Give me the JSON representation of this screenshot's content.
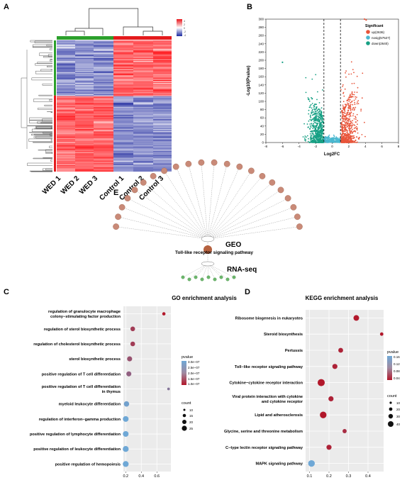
{
  "panels": {
    "A": "A",
    "B": "B",
    "C": "C",
    "D": "D",
    "E": "E"
  },
  "heatmap": {
    "samples": [
      "WED 1",
      "WED 2",
      "WED 3",
      "Control 1",
      "Control 2",
      "Control 3"
    ],
    "groups": [
      {
        "name": "WED",
        "color": "#2ca02c"
      },
      {
        "name": "Control",
        "color": "#e41a1c"
      }
    ],
    "legend_ticks": [
      "4",
      "2",
      "0",
      "-2",
      "-4"
    ]
  },
  "chart_data": [
    {
      "type": "scatter",
      "panel": "B",
      "xlabel": "Log2FC",
      "ylabel": "-Log10(Pvalue)",
      "xlim": [
        -8,
        8
      ],
      "ylim": [
        0,
        300
      ],
      "xticks": [
        "-8",
        "-6",
        "-4",
        "-2",
        "0",
        "2",
        "4",
        "6",
        "8"
      ],
      "yticks": [
        "0",
        "20",
        "40",
        "60",
        "80",
        "100",
        "120",
        "140",
        "160",
        "180",
        "200",
        "220",
        "240",
        "260",
        "280",
        "300"
      ],
      "threshold_x": [
        -1,
        1
      ],
      "legend_title": "Significant",
      "series": [
        {
          "name": "up(2636)",
          "color": "#e8553a"
        },
        {
          "name": "nosig(57527)",
          "color": "#4ab8d0"
        },
        {
          "name": "down(2640)",
          "color": "#17a084"
        }
      ]
    },
    {
      "type": "scatter",
      "panel": "C",
      "title": "GO enrichment analysis",
      "xticks": [
        "0.2",
        "0.4",
        "0.6"
      ],
      "xlim": [
        0.17,
        0.78
      ],
      "categories": [
        "regulation of granulocyte macrophage colony−stimulating factor production",
        "regulation of sterol biosynthetic process",
        "regulation of cholesterol biosynthetic process",
        "sterol biosynthetic process",
        "positive regulation of T cell differentiation",
        "positive regulation of T cell differentiation in thymus",
        "myeloid leukocyte differentiation",
        "regulation of interferon−gamma production",
        "positive regulation of lymphocyte differentiation",
        "positive regulation of leukocyte differentiation",
        "positive regulation of hemopoiesis"
      ],
      "x": [
        0.69,
        0.29,
        0.29,
        0.25,
        0.24,
        0.75,
        0.21,
        0.2,
        0.2,
        0.2,
        0.2
      ],
      "count": [
        6,
        12,
        12,
        14,
        14,
        4,
        16,
        18,
        18,
        19,
        19
      ],
      "pvalue": [
        1e-07,
        1.5e-07,
        1.5e-07,
        1.8e-07,
        2e-07,
        2.3e-07,
        2.9e-07,
        3e-07,
        3e-07,
        3e-07,
        3e-07
      ],
      "legend_color_title": "pvalue",
      "legend_color_ticks": [
        "3.0e−07",
        "2.5e−07",
        "2.0e−07",
        "1.5e−07",
        "1.0e−07"
      ],
      "legend_size_title": "count",
      "legend_size_ticks": [
        "10",
        "15",
        "20",
        "25"
      ]
    },
    {
      "type": "scatter",
      "panel": "D",
      "title": "KEGG enrichment analysis",
      "xticks": [
        "0.1",
        "0.2",
        "0.3",
        "0.4"
      ],
      "xlim": [
        0.08,
        0.48
      ],
      "categories": [
        "Ribosome biogenesis in eukaryotes",
        "Steroid biosynthesis",
        "Pertussis",
        "Toll−like receptor signaling pathway",
        "Cytokine−cytokine receptor interaction",
        "Viral protein interaction with cytokine and cytokine receptor",
        "Lipid and atherosclerosis",
        "Glycine, serine and threonine metabolism",
        "C−type lectin receptor signaling pathway",
        "MAPK signaling pathway"
      ],
      "x": [
        0.34,
        0.47,
        0.26,
        0.23,
        0.16,
        0.21,
        0.17,
        0.28,
        0.2,
        0.11
      ],
      "count": [
        22,
        8,
        16,
        18,
        35,
        18,
        30,
        12,
        18,
        30
      ],
      "pvalue": [
        0.02,
        0.02,
        0.03,
        0.03,
        0.02,
        0.03,
        0.02,
        0.04,
        0.03,
        0.16
      ],
      "legend_color_title": "pvalue",
      "legend_color_ticks": [
        "0.16",
        "0.12",
        "0.08",
        "0.04"
      ],
      "legend_size_title": "count",
      "legend_size_ticks": [
        "10",
        "20",
        "30",
        "40"
      ]
    }
  ],
  "network": {
    "labels": {
      "geo": "GEO",
      "pathway": "Toll-like receptor signaling pathway",
      "rnaseq": "RNA-seq"
    }
  }
}
